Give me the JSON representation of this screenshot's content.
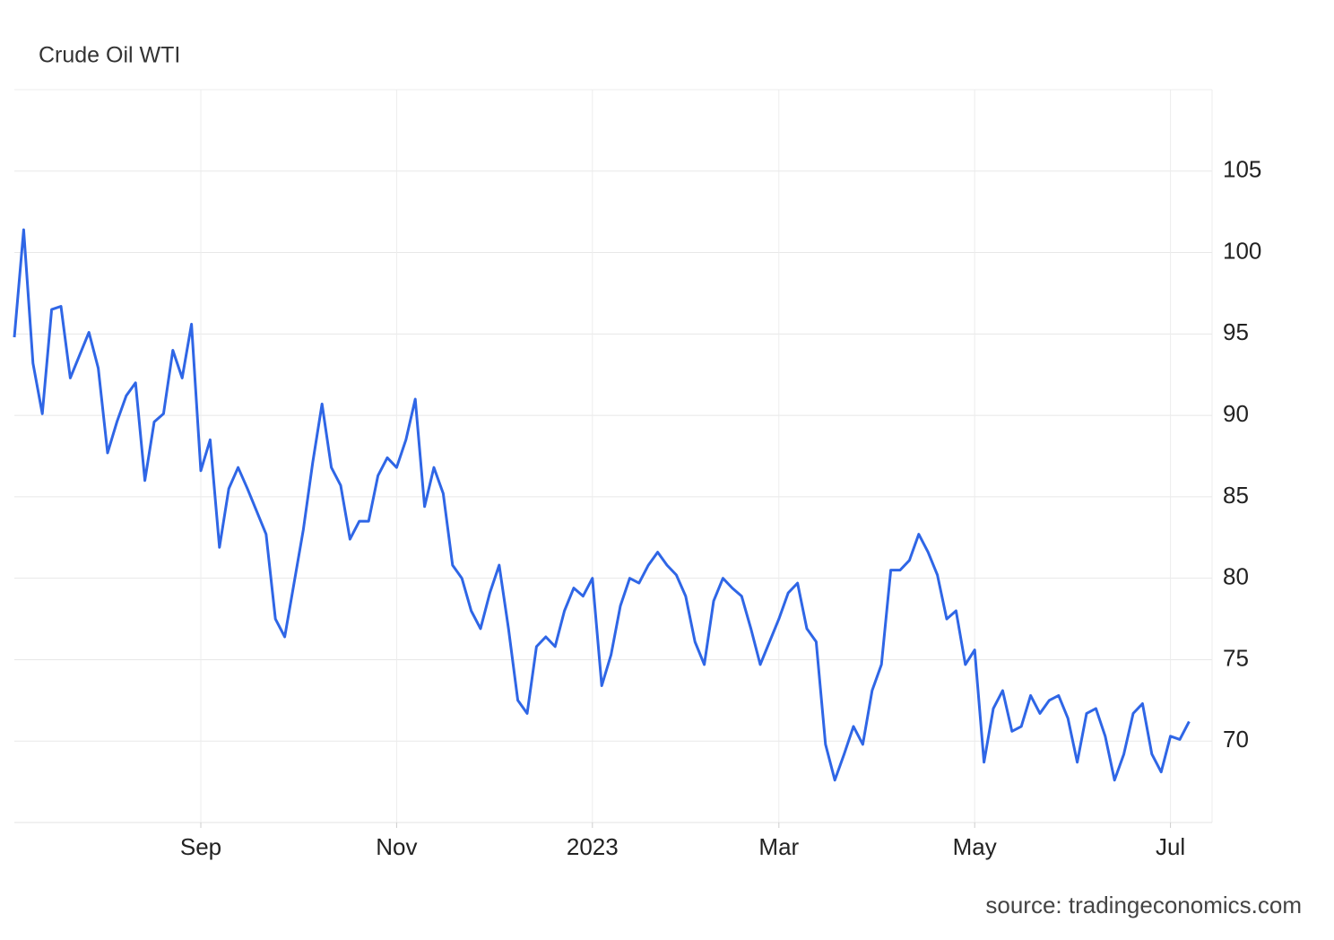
{
  "chart_data": {
    "type": "line",
    "title": "Crude Oil WTI",
    "source": "source: tradingeconomics.com",
    "color": "#2f66e6",
    "grid": true,
    "ylim": [
      65,
      110
    ],
    "yticks": [
      70,
      75,
      80,
      85,
      90,
      95,
      100,
      105
    ],
    "categories": [
      null,
      null,
      null,
      null,
      null,
      null,
      null,
      null,
      null,
      null,
      null,
      null,
      null,
      null,
      null,
      null,
      null,
      null,
      null,
      null,
      "Sep",
      null,
      null,
      null,
      null,
      null,
      null,
      null,
      null,
      null,
      null,
      null,
      null,
      null,
      null,
      null,
      null,
      null,
      null,
      null,
      null,
      "Nov",
      null,
      null,
      null,
      null,
      null,
      null,
      null,
      null,
      null,
      null,
      null,
      null,
      null,
      null,
      null,
      null,
      null,
      null,
      null,
      null,
      "2023",
      null,
      null,
      null,
      null,
      null,
      null,
      null,
      null,
      null,
      null,
      null,
      null,
      null,
      null,
      null,
      null,
      null,
      null,
      null,
      "Mar",
      null,
      null,
      null,
      null,
      null,
      null,
      null,
      null,
      null,
      null,
      null,
      null,
      null,
      null,
      null,
      null,
      null,
      null,
      null,
      null,
      "May",
      null,
      null,
      null,
      null,
      null,
      null,
      null,
      null,
      null,
      null,
      null,
      null,
      null,
      null,
      null,
      null,
      null,
      null,
      null,
      null,
      "Jul",
      null,
      null
    ],
    "values": [
      94.8,
      101.4,
      93.2,
      90.1,
      96.5,
      96.7,
      92.3,
      93.7,
      95.1,
      92.9,
      87.7,
      89.6,
      91.2,
      92.0,
      86.0,
      89.6,
      90.1,
      94.0,
      92.3,
      95.6,
      86.6,
      88.5,
      81.9,
      85.5,
      86.8,
      85.5,
      84.1,
      82.7,
      77.5,
      76.4,
      79.7,
      83.0,
      87.1,
      90.7,
      86.8,
      85.7,
      82.4,
      83.5,
      83.5,
      86.3,
      87.4,
      86.8,
      88.5,
      91.0,
      84.4,
      86.8,
      85.2,
      80.8,
      80.0,
      78.0,
      76.9,
      79.1,
      80.8,
      76.9,
      72.5,
      71.7,
      75.8,
      76.4,
      75.8,
      78.0,
      79.4,
      78.9,
      80.0,
      73.4,
      75.3,
      78.3,
      80.0,
      79.7,
      80.8,
      81.6,
      80.8,
      80.2,
      78.9,
      76.1,
      74.7,
      78.6,
      80.0,
      79.4,
      78.9,
      76.9,
      74.7,
      76.1,
      77.5,
      79.1,
      79.7,
      76.9,
      76.1,
      69.8,
      67.6,
      69.2,
      70.9,
      69.8,
      73.1,
      74.7,
      80.5,
      80.5,
      81.1,
      82.7,
      81.6,
      80.2,
      77.5,
      78.0,
      74.7,
      75.6,
      68.7,
      72.0,
      73.1,
      70.6,
      70.9,
      72.8,
      71.7,
      72.5,
      72.8,
      71.4,
      68.7,
      71.7,
      72.0,
      70.3,
      67.6,
      69.2,
      71.7,
      72.3,
      69.2,
      68.1,
      70.3,
      70.1,
      71.2
    ]
  }
}
